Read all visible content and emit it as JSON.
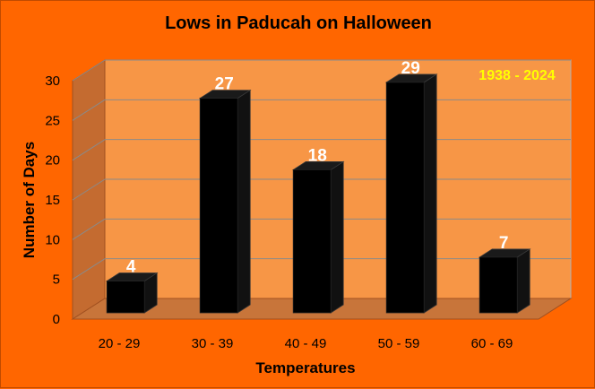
{
  "chart_data": {
    "type": "bar",
    "title": "Lows in Paducah on Halloween",
    "xlabel": "Temperatures",
    "ylabel": "Number of Days",
    "categories": [
      "20 - 29",
      "30 - 39",
      "40 - 49",
      "50 - 59",
      "60 - 69"
    ],
    "values": [
      4,
      27,
      18,
      29,
      7
    ],
    "ylim": [
      0,
      30
    ],
    "yticks": [
      0,
      5,
      10,
      15,
      20,
      25,
      30
    ],
    "grid": true,
    "annotation": "1938 - 2024",
    "legend": "none",
    "colors": {
      "background": "#ff6600",
      "plot_area": "#f79646",
      "floor": "#c8753a",
      "side_wall": "#c46b30",
      "bar": "#000000",
      "gridline": "#8a8a8a",
      "data_label": "#ffffff",
      "annotation": "#ffff00"
    }
  }
}
